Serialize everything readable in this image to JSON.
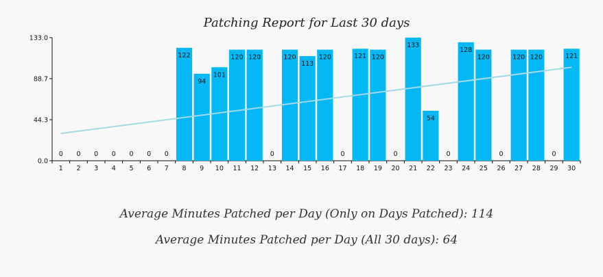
{
  "chart_data": {
    "type": "bar",
    "title": "Patching Report for Last 30 days",
    "xlabel": "",
    "ylabel": "",
    "ylim": [
      0,
      133.0
    ],
    "y_ticks": [
      "0.0",
      "44.3",
      "88.7",
      "133.0"
    ],
    "categories": [
      "1",
      "2",
      "3",
      "4",
      "5",
      "6",
      "7",
      "8",
      "9",
      "10",
      "11",
      "12",
      "13",
      "14",
      "15",
      "16",
      "17",
      "18",
      "19",
      "20",
      "21",
      "22",
      "23",
      "24",
      "25",
      "26",
      "27",
      "28",
      "29",
      "30"
    ],
    "values": [
      0,
      0,
      0,
      0,
      0,
      0,
      0,
      122,
      94,
      101,
      120,
      120,
      0,
      120,
      113,
      120,
      0,
      121,
      120,
      0,
      133,
      54,
      0,
      128,
      120,
      0,
      120,
      120,
      0,
      121
    ],
    "trend_line": {
      "start": 29.5,
      "end": 101
    },
    "grid": false,
    "bar_color": "#03b8f5",
    "trend_color": "#a4d9e6"
  },
  "summary": {
    "line1": "Average Minutes Patched per Day (Only on Days Patched): 114",
    "line2": "Average Minutes Patched per Day (All 30 days): 64"
  }
}
